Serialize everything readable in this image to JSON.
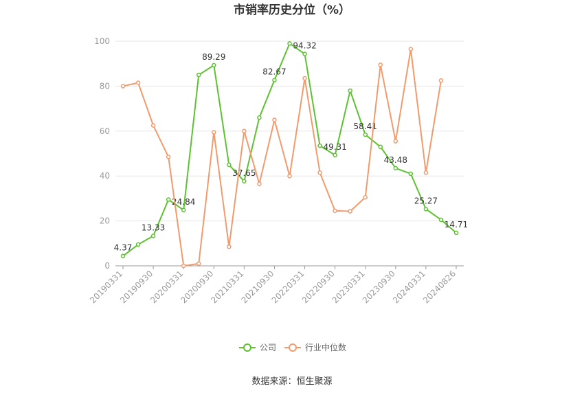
{
  "chart_data": {
    "type": "line",
    "title": "市销率历史分位（%）",
    "source": "数据来源：恒生聚源",
    "categories": [
      "20190331",
      null,
      "20190930",
      null,
      "20200331",
      null,
      "20200930",
      null,
      "20210331",
      null,
      "20210930",
      null,
      "20220331",
      null,
      "20220930",
      null,
      "20230331",
      null,
      "20230930",
      null,
      "20240331",
      null,
      "20240826"
    ],
    "series": [
      {
        "name": "公司",
        "color": "#5cc22f",
        "values": [
          4.37,
          9.5,
          13.33,
          29.5,
          24.84,
          85,
          89.29,
          45,
          37.65,
          66,
          82.67,
          99,
          94.32,
          53.5,
          49.31,
          78,
          58.41,
          53,
          43.48,
          41,
          25.27,
          20.5,
          14.71
        ],
        "value_labels": [
          "4.37",
          null,
          "13.33",
          null,
          "24.84",
          null,
          "89.29",
          null,
          "37.65",
          null,
          "82.67",
          null,
          "94.32",
          null,
          "49.31",
          null,
          "58.41",
          null,
          "43.48",
          null,
          "25.27",
          null,
          "14.71"
        ]
      },
      {
        "name": "行业中位数",
        "color": "#f39a6c",
        "values": [
          80,
          81.5,
          62.5,
          48.5,
          0,
          1,
          59.5,
          8.5,
          60,
          36.5,
          65,
          40,
          83.5,
          41.5,
          24.5,
          24.3,
          30.5,
          89.5,
          55.5,
          96.5,
          41.5,
          82.5,
          null
        ]
      }
    ],
    "ylim": [
      0,
      100
    ],
    "yticks": [
      0,
      20,
      40,
      60,
      80,
      100
    ],
    "grid": true,
    "legend": "bottom"
  }
}
